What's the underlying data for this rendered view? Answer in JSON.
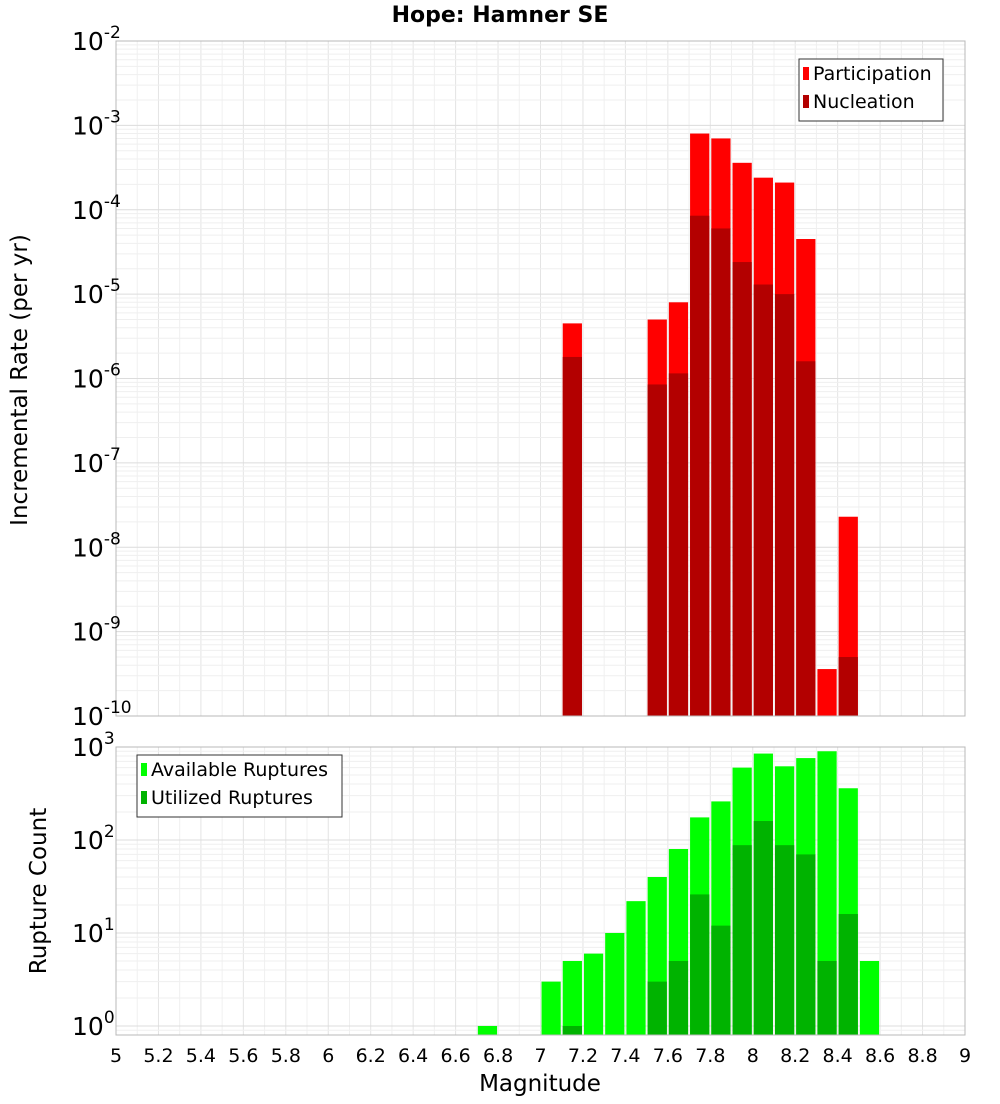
{
  "chart_data": [
    {
      "type": "bar",
      "title": "Hope: Hamner SE",
      "xlabel": "",
      "ylabel": "Incremental Rate (per yr)",
      "yscale": "log",
      "ylim": [
        1e-10,
        0.01
      ],
      "xlim": [
        5,
        9
      ],
      "bar_width": 0.1,
      "grid": true,
      "legend_position": "top-right",
      "ytick_exponents": [
        -10,
        -9,
        -8,
        -7,
        -6,
        -5,
        -4,
        -3,
        -2
      ],
      "series": [
        {
          "name": "Participation",
          "color": "#ff0000",
          "points": [
            [
              7.15,
              4.5e-06
            ],
            [
              7.55,
              5e-06
            ],
            [
              7.65,
              8e-06
            ],
            [
              7.75,
              0.0008
            ],
            [
              7.85,
              0.0007
            ],
            [
              7.95,
              0.00036
            ],
            [
              8.05,
              0.00024
            ],
            [
              8.15,
              0.00021
            ],
            [
              8.25,
              4.5e-05
            ],
            [
              8.35,
              3.6e-10
            ],
            [
              8.45,
              2.3e-08
            ]
          ]
        },
        {
          "name": "Nucleation",
          "color": "#b30000",
          "points": [
            [
              7.15,
              1.8e-06
            ],
            [
              7.55,
              8.5e-07
            ],
            [
              7.65,
              1.15e-06
            ],
            [
              7.75,
              8.5e-05
            ],
            [
              7.85,
              6e-05
            ],
            [
              7.95,
              2.4e-05
            ],
            [
              8.05,
              1.3e-05
            ],
            [
              8.15,
              1e-05
            ],
            [
              8.25,
              1.6e-06
            ],
            [
              8.45,
              5e-10
            ]
          ]
        }
      ]
    },
    {
      "type": "bar",
      "title": "",
      "xlabel": "Magnitude",
      "ylabel": "Rupture Count",
      "yscale": "log",
      "ylim": [
        0.8,
        1000
      ],
      "xlim": [
        5,
        9
      ],
      "bar_width": 0.1,
      "grid": true,
      "legend_position": "top-left",
      "ytick_exponents": [
        0,
        1,
        2,
        3
      ],
      "xticks": [
        "5",
        "5.2",
        "5.4",
        "5.6",
        "5.8",
        "6",
        "6.2",
        "6.4",
        "6.6",
        "6.8",
        "7",
        "7.2",
        "7.4",
        "7.6",
        "7.8",
        "8",
        "8.2",
        "8.4",
        "8.6",
        "8.8",
        "9"
      ],
      "series": [
        {
          "name": "Available Ruptures",
          "color": "#00ff00",
          "points": [
            [
              6.75,
              1
            ],
            [
              7.05,
              3
            ],
            [
              7.15,
              5
            ],
            [
              7.25,
              6
            ],
            [
              7.35,
              10
            ],
            [
              7.45,
              22
            ],
            [
              7.55,
              40
            ],
            [
              7.65,
              80
            ],
            [
              7.75,
              175
            ],
            [
              7.85,
              260
            ],
            [
              7.95,
              600
            ],
            [
              8.05,
              850
            ],
            [
              8.15,
              620
            ],
            [
              8.25,
              760
            ],
            [
              8.35,
              900
            ],
            [
              8.45,
              360
            ],
            [
              8.55,
              5
            ]
          ]
        },
        {
          "name": "Utilized Ruptures",
          "color": "#00b300",
          "points": [
            [
              7.15,
              1
            ],
            [
              7.55,
              3
            ],
            [
              7.65,
              5
            ],
            [
              7.75,
              26
            ],
            [
              7.85,
              12
            ],
            [
              7.95,
              88
            ],
            [
              8.05,
              160
            ],
            [
              8.15,
              88
            ],
            [
              8.25,
              70
            ],
            [
              8.35,
              5
            ],
            [
              8.45,
              16
            ]
          ]
        }
      ]
    }
  ]
}
